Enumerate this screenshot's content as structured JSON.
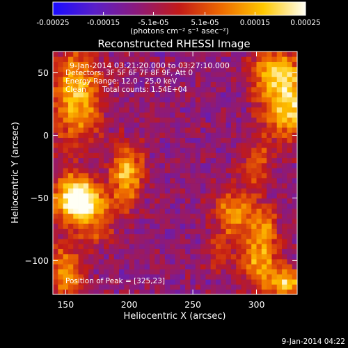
{
  "chart_data": {
    "type": "heatmap",
    "title": "Reconstructed RHESSI Image",
    "xlabel": "Heliocentric X (arcsec)",
    "ylabel": "Heliocentric Y (arcsec)",
    "xlim": [
      140,
      332
    ],
    "ylim": [
      -127,
      67
    ],
    "x_ticks": [
      150,
      200,
      250,
      300
    ],
    "y_ticks": [
      50,
      0,
      -50,
      -100
    ],
    "colorbar": {
      "min": -0.00025,
      "max": 0.00025,
      "tick_labels": [
        "-0.00025",
        "-0.00015",
        "-5.1e-05",
        "5.1e-05",
        "0.00015",
        "0.00025"
      ],
      "tick_values": [
        -0.00025,
        -0.00015,
        -5.1e-05,
        5.1e-05,
        0.00015,
        0.00025
      ],
      "unit_label": "(photons cm⁻² s⁻¹ asec⁻²)",
      "colors": [
        "#1a0cff",
        "#5a1fc8",
        "#8c1a7a",
        "#c21a18",
        "#ee6a00",
        "#ffc800",
        "#fffff5"
      ]
    },
    "annotations": {
      "line1": "9-Jan-2014 03:21:20.000 to 03:27:10.000",
      "line2": "Detectors: 3F 5F 6F 7F 8F 9F, Att 0",
      "line3": "Energy Range: 12.0 - 25.0 keV",
      "line4_left": "Clean",
      "line4_right": "Total counts: 1.54E+04",
      "peak": "Position of Peak = [325,23]"
    },
    "peak_position": [
      325,
      23
    ],
    "sources": [
      {
        "x": 158,
        "y": 33,
        "sx": 14,
        "sy": 28,
        "amp": 0.00024
      },
      {
        "x": 158,
        "y": -45,
        "sx": 11,
        "sy": 11,
        "amp": 0.00025
      },
      {
        "x": 165,
        "y": -58,
        "sx": 16,
        "sy": 11,
        "amp": 0.00025
      },
      {
        "x": 198,
        "y": -30,
        "sx": 9,
        "sy": 16,
        "amp": 0.00024
      },
      {
        "x": 150,
        "y": -110,
        "sx": 10,
        "sy": 16,
        "amp": 0.00021
      },
      {
        "x": 325,
        "y": 23,
        "sx": 14,
        "sy": 18,
        "amp": 0.00027
      },
      {
        "x": 315,
        "y": 52,
        "sx": 13,
        "sy": 13,
        "amp": 0.00022
      },
      {
        "x": 300,
        "y": -22,
        "sx": 8,
        "sy": 15,
        "amp": 0.00013
      },
      {
        "x": 282,
        "y": -62,
        "sx": 11,
        "sy": 14,
        "amp": 0.0002
      },
      {
        "x": 305,
        "y": -72,
        "sx": 8,
        "sy": 12,
        "amp": 0.00018
      },
      {
        "x": 302,
        "y": -100,
        "sx": 11,
        "sy": 12,
        "amp": 0.0002
      },
      {
        "x": 322,
        "y": -118,
        "sx": 12,
        "sy": 9,
        "amp": 0.00024
      },
      {
        "x": 270,
        "y": -95,
        "sx": 7,
        "sy": 9,
        "amp": 0.00011
      },
      {
        "x": 175,
        "y": -78,
        "sx": 10,
        "sy": 8,
        "amp": 9e-05
      }
    ]
  },
  "footer": {
    "timestamp": "9-Jan-2014 04:22"
  }
}
